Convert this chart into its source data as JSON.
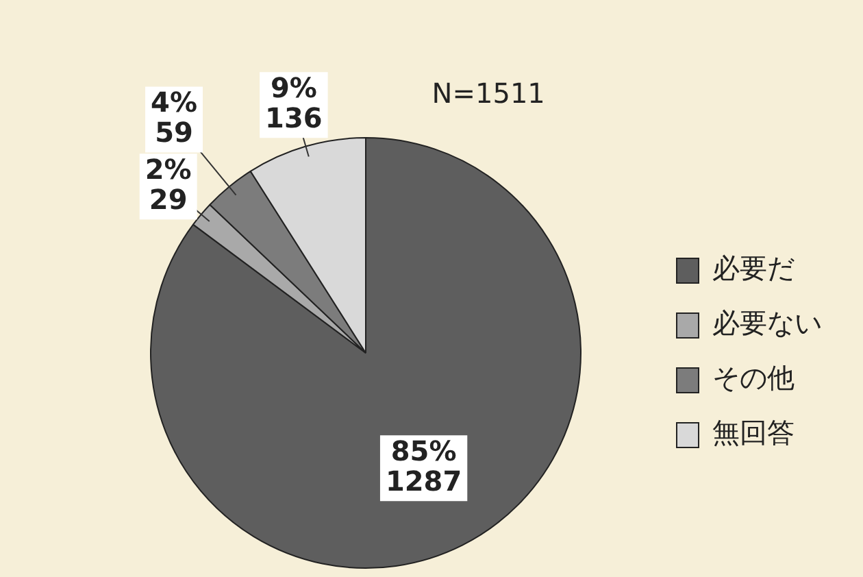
{
  "chart_data": {
    "type": "pie",
    "categories": [
      "必要だ",
      "必要ない",
      "その他",
      "無回答"
    ],
    "values": [
      1287,
      29,
      59,
      136
    ],
    "colors": [
      "#5e5e5e",
      "#a9a9a9",
      "#7c7c7c",
      "#d9d9d9"
    ],
    "value_labels": [
      "85%\n1287",
      "2%\n29",
      "4%\n59",
      "9%\n136"
    ],
    "annotations": [
      "N=1511"
    ],
    "legend": "right"
  }
}
